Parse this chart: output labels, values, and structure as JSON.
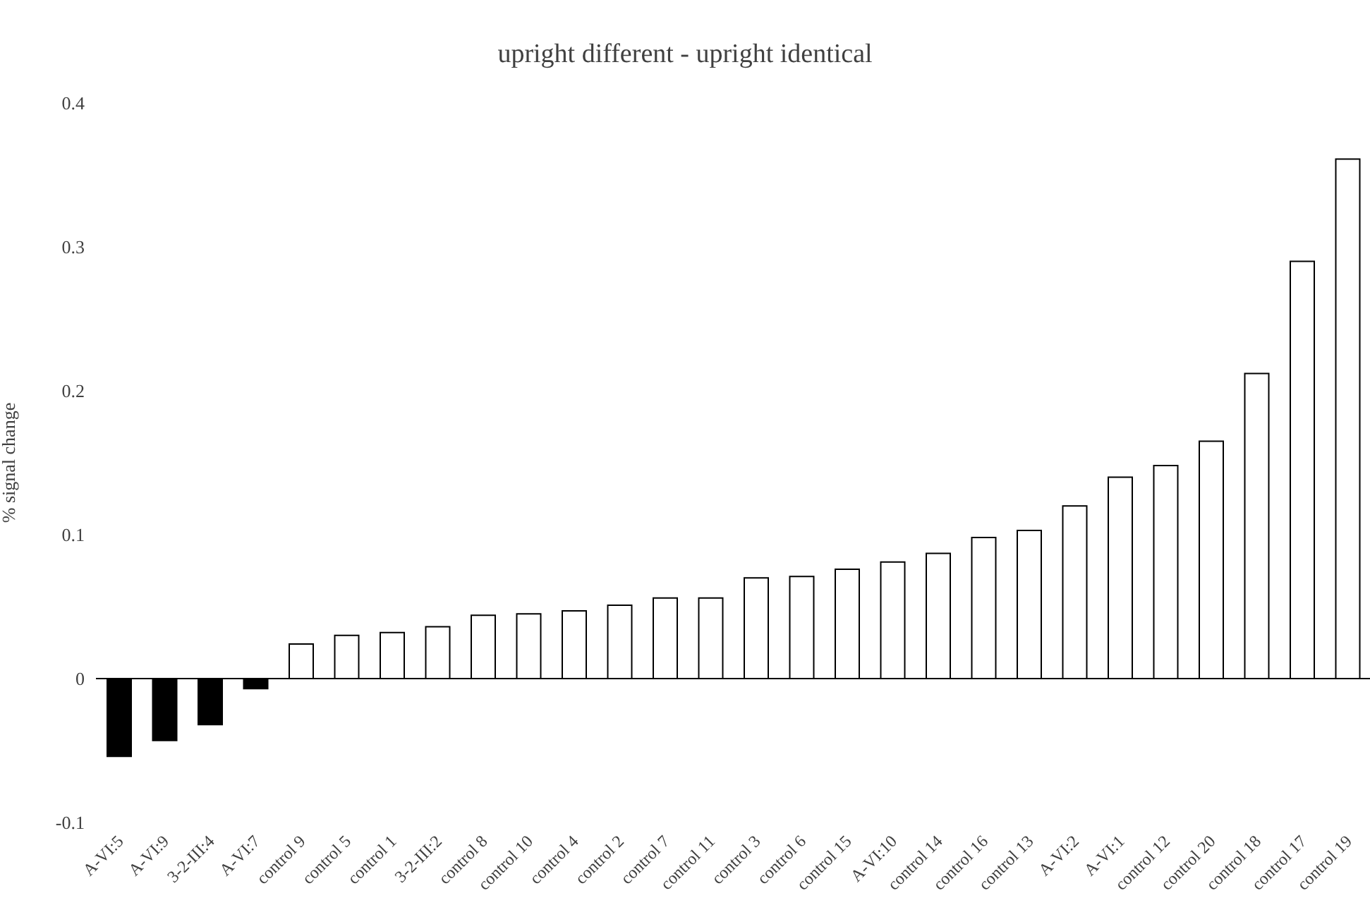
{
  "chart_data": {
    "type": "bar",
    "title": "upright different - upright identical",
    "ylabel": "% signal change",
    "categories": [
      "A-VI:5",
      "A-VI:9",
      "3-2-III:4",
      "A-VI:7",
      "control 9",
      "control 5",
      "control 1",
      "3-2-III:2",
      "control 8",
      "control 10",
      "control 4",
      "control 2",
      "control 7",
      "control 11",
      "control 3",
      "control 6",
      "control 15",
      "A-VI:10",
      "control 14",
      "control 16",
      "control 13",
      "A-VI:2",
      "A-VI:1",
      "control 12",
      "control 20",
      "control 18",
      "control 17",
      "control 19"
    ],
    "values": [
      -0.054,
      -0.043,
      -0.032,
      -0.007,
      0.024,
      0.03,
      0.032,
      0.036,
      0.044,
      0.045,
      0.047,
      0.051,
      0.056,
      0.056,
      0.07,
      0.071,
      0.076,
      0.081,
      0.087,
      0.098,
      0.103,
      0.12,
      0.14,
      0.148,
      0.165,
      0.212,
      0.29,
      0.361
    ],
    "colors": [
      "#000000",
      "#000000",
      "#000000",
      "#000000",
      "#ffffff",
      "#ffffff",
      "#ffffff",
      "#ffffff",
      "#ffffff",
      "#ffffff",
      "#ffffff",
      "#ffffff",
      "#ffffff",
      "#ffffff",
      "#ffffff",
      "#ffffff",
      "#ffffff",
      "#ffffff",
      "#ffffff",
      "#ffffff",
      "#ffffff",
      "#ffffff",
      "#ffffff",
      "#ffffff",
      "#ffffff",
      "#ffffff",
      "#ffffff",
      "#ffffff"
    ],
    "ylim": [
      -0.1,
      0.4
    ],
    "yticks": [
      -0.1,
      0,
      0.1,
      0.2,
      0.3,
      0.4
    ],
    "legend": false
  }
}
